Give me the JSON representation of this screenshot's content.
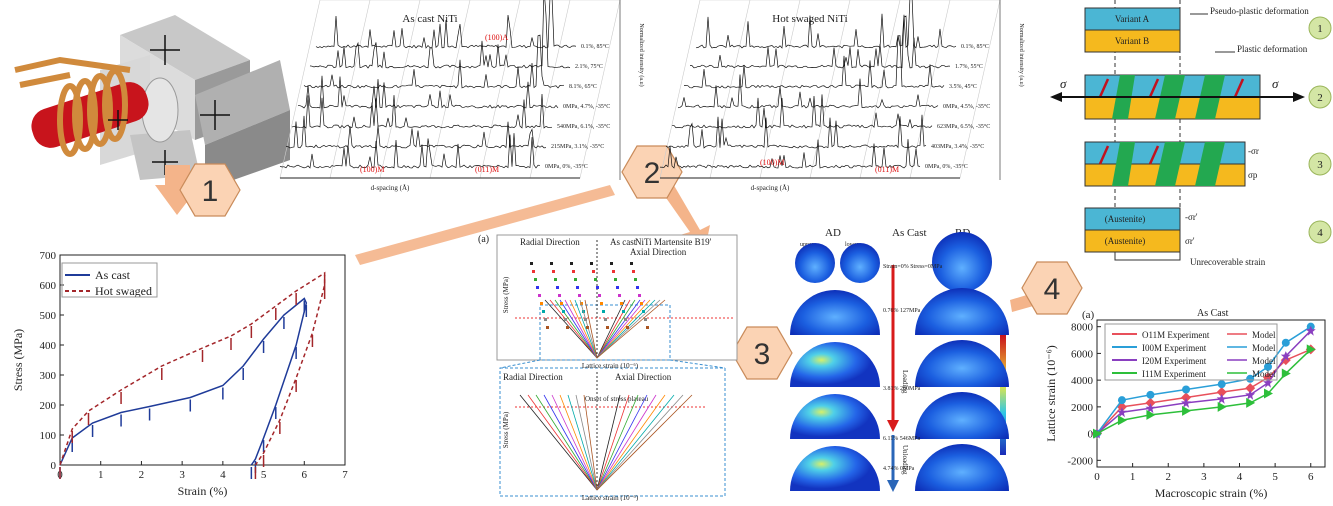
{
  "steps": [
    "1",
    "2",
    "3",
    "4"
  ],
  "diffraction": [
    {
      "title": "As cast NiTi",
      "xlabel": "d-spacing (Å)",
      "ylabel": "Normalized intensity (a.u)",
      "curves": [
        "0.1%, 85°C",
        "2.1%, 75°C",
        "8.1%, 65°C",
        "0MPa, 4.7%, -35°C",
        "540MPa, 6.1%, -35°C",
        "215MPa, 3.1%, -35°C",
        "0MPa, 0%, -35°C"
      ],
      "peaks": [
        "(100)A",
        "(100)M",
        "(011)M"
      ]
    },
    {
      "title": "Hot swaged NiTi",
      "xlabel": "d-spacing (Å)",
      "ylabel": "Normalized intensity (a.u)",
      "curves": [
        "0.1%, 85°C",
        "1.7%, 55°C",
        "3.5%, 45°C",
        "0MPa, 4.5%, -35°C",
        "623MPa, 6.5%, -35°C",
        "403MPa, 3.4%, -35°C",
        "0MPa, 0%, -35°C"
      ],
      "peaks": [
        "(100)M",
        "(011)M"
      ]
    }
  ],
  "schematic": {
    "variant_a": "Variant A",
    "variant_b": "Variant B",
    "pseudo": "Pseudo-plastic deformation",
    "plastic": "Plastic deformation",
    "sigma": "σ",
    "stages": [
      "1",
      "2",
      "3",
      "4"
    ],
    "sr": "-σr",
    "sp": "σp",
    "sr2": "-σr'",
    "sr3": "σr'",
    "austenite": "(Austenite)",
    "unrecoverable": "Unrecoverable strain"
  },
  "lattice_panel": {
    "label": "(a)",
    "radial": "Radial Direction",
    "as_cast": "As cast",
    "phase": "NiTi Martensite B19'",
    "axial": "Axial Direction",
    "ylabel": "Stress (MPa)",
    "xlabel": "Lattice strain (10⁻⁶)",
    "onset": "Onset of stress plateau"
  },
  "pole": {
    "ad": "AD",
    "title": "As Cast",
    "rd": "RD",
    "upper": "upper",
    "lower": "lower",
    "loading": "Loading",
    "unloading": "Unloading",
    "states": [
      "Strain=0% Stress=0MPa",
      "0.76% 127MPa",
      "3.81% 260MPa",
      "6.11% 546MPa",
      "4.74% 0MPa"
    ]
  },
  "chart_data": [
    {
      "type": "line",
      "xlabel": "Strain (%)",
      "ylabel": "Stress (MPa)",
      "xlim": [
        0,
        7
      ],
      "ylim": [
        0,
        700
      ],
      "xticks": [
        0,
        1,
        2,
        3,
        4,
        5,
        6,
        7
      ],
      "yticks": [
        0,
        100,
        200,
        300,
        400,
        500,
        600,
        700
      ],
      "legend": "upper left",
      "series": [
        {
          "name": "As cast",
          "color": "#1f3b99",
          "dash": false,
          "x": [
            0,
            0.3,
            0.8,
            1.5,
            2.2,
            3.2,
            4.0,
            4.5,
            5.0,
            5.5,
            6.0,
            6.05,
            5.8,
            5.3,
            5.0,
            4.8,
            4.7
          ],
          "values": [
            0,
            90,
            140,
            175,
            195,
            225,
            265,
            330,
            420,
            500,
            555,
            540,
            400,
            200,
            90,
            20,
            0
          ]
        },
        {
          "name": "Hot swaged",
          "color": "#a3262a",
          "dash": true,
          "x": [
            0,
            0.3,
            0.7,
            1.5,
            2.5,
            3.5,
            4.2,
            4.7,
            5.3,
            5.8,
            6.5,
            6.5,
            6.2,
            5.8,
            5.4,
            5.0,
            4.8
          ],
          "values": [
            0,
            120,
            180,
            250,
            330,
            390,
            430,
            470,
            530,
            580,
            640,
            600,
            440,
            290,
            150,
            40,
            0
          ]
        }
      ]
    },
    {
      "type": "line",
      "title": "As Cast",
      "label": "(a)",
      "xlabel": "Macroscopic strain (%)",
      "ylabel": "Lattice strain (10⁻⁶)",
      "xlim": [
        0,
        6.4
      ],
      "ylim": [
        -2500,
        8500
      ],
      "xticks": [
        0,
        1,
        2,
        3,
        4,
        5,
        6
      ],
      "yticks": [
        -2000,
        0,
        2000,
        4000,
        6000,
        8000
      ],
      "x": [
        0,
        0.7,
        1.5,
        2.5,
        3.5,
        4.3,
        4.8,
        5.3,
        6.0
      ],
      "series": [
        {
          "name": "O11M Experiment",
          "model": "Model",
          "color": "#e8505b",
          "marker": "diamond",
          "values": [
            0,
            2000,
            2300,
            2700,
            3100,
            3400,
            4200,
            5500,
            6300
          ]
        },
        {
          "name": "I00M Experiment",
          "model": "Model",
          "color": "#2a9fd8",
          "marker": "circle",
          "values": [
            0,
            2500,
            2900,
            3300,
            3700,
            4100,
            5000,
            6800,
            8000
          ]
        },
        {
          "name": "I20M Experiment",
          "model": "Model",
          "color": "#8a3fc0",
          "marker": "star",
          "values": [
            0,
            1600,
            1900,
            2300,
            2600,
            2900,
            3800,
            5800,
            7700
          ]
        },
        {
          "name": "I11M Experiment",
          "model": "Model",
          "color": "#2dbf3a",
          "marker": "triangle",
          "values": [
            0,
            1000,
            1400,
            1700,
            2000,
            2300,
            3000,
            4500,
            6300
          ]
        }
      ]
    }
  ]
}
